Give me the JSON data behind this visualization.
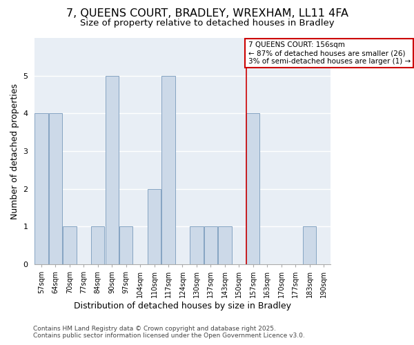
{
  "title_line1": "7, QUEENS COURT, BRADLEY, WREXHAM, LL11 4FA",
  "title_line2": "Size of property relative to detached houses in Bradley",
  "xlabel": "Distribution of detached houses by size in Bradley",
  "ylabel": "Number of detached properties",
  "categories": [
    "57sqm",
    "64sqm",
    "70sqm",
    "77sqm",
    "84sqm",
    "90sqm",
    "97sqm",
    "104sqm",
    "110sqm",
    "117sqm",
    "124sqm",
    "130sqm",
    "137sqm",
    "143sqm",
    "150sqm",
    "157sqm",
    "163sqm",
    "170sqm",
    "177sqm",
    "183sqm",
    "190sqm"
  ],
  "values": [
    4,
    4,
    1,
    0,
    1,
    5,
    1,
    0,
    2,
    5,
    0,
    1,
    1,
    1,
    0,
    4,
    0,
    0,
    0,
    1,
    0
  ],
  "bar_color": "#ccd9e8",
  "bar_edge_color": "#7799bb",
  "marker_index": 15,
  "marker_label_line1": "7 QUEENS COURT: 156sqm",
  "marker_label_line2": "← 87% of detached houses are smaller (26)",
  "marker_label_line3": "3% of semi-detached houses are larger (1) →",
  "marker_color": "#cc0000",
  "ylim": [
    0,
    6
  ],
  "yticks": [
    0,
    1,
    2,
    3,
    4,
    5,
    6
  ],
  "plot_bg_color": "#e8eef5",
  "fig_bg_color": "#ffffff",
  "footer_line1": "Contains HM Land Registry data © Crown copyright and database right 2025.",
  "footer_line2": "Contains public sector information licensed under the Open Government Licence v3.0.",
  "title_fontsize": 11.5,
  "subtitle_fontsize": 9.5,
  "axis_label_fontsize": 9,
  "tick_fontsize": 7,
  "footer_fontsize": 6.5,
  "annotation_fontsize": 7.5
}
